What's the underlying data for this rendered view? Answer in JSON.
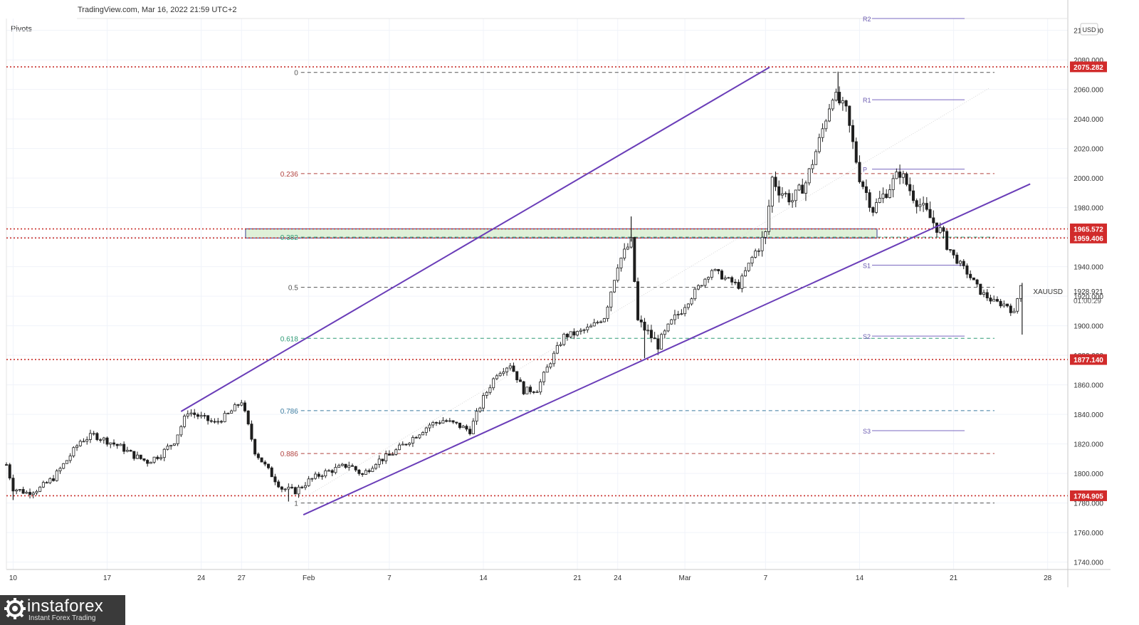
{
  "header": {
    "source": "TradingView.com, Mar 16, 2022 21:59 UTC+2",
    "indicator": "Pivots",
    "currency": "USD"
  },
  "brand": {
    "name": "instaforex",
    "tagline": "Instant Forex Trading"
  },
  "colors": {
    "background": "#ffffff",
    "grid": "#f0f3fa",
    "candle": "#1e1e1e",
    "channel": "#6a3db8",
    "level_red": "#c8302c",
    "fib_dashed": "#555555",
    "fib_red": "#b0413e",
    "fib_green": "#2e9a75",
    "fib_blue": "#3a7ba0",
    "zone_fill": "#dff0d8",
    "pivot_line": "#7a68c0"
  },
  "chart_data": {
    "type": "candlestick",
    "symbol": "XAUUSD",
    "last_price": "1928.921",
    "countdown": "01:00:29",
    "ylim": [
      1735,
      2108
    ],
    "y_ticks": [
      1740,
      1760,
      1780,
      1800,
      1820,
      1840,
      1860,
      1880,
      1900,
      1920,
      1940,
      1960,
      1980,
      2000,
      2020,
      2040,
      2060,
      2080,
      2100
    ],
    "y_tick_labels": [
      "1740.000",
      "1760.000",
      "1780.000",
      "1800.000",
      "1820.000",
      "1840.000",
      "1860.000",
      "1880.000",
      "1900.000",
      "1920.000",
      "1940.000",
      "1960.000",
      "1980.000",
      "2000.000",
      "2020.000",
      "2040.000",
      "2060.000",
      "2080.000",
      "2100.000"
    ],
    "x_ticks": [
      {
        "label": "10",
        "day": 0
      },
      {
        "label": "17",
        "day": 7
      },
      {
        "label": "24",
        "day": 14
      },
      {
        "label": "27",
        "day": 17
      },
      {
        "label": "Feb",
        "day": 22
      },
      {
        "label": "7",
        "day": 28
      },
      {
        "label": "14",
        "day": 35
      },
      {
        "label": "21",
        "day": 42
      },
      {
        "label": "24",
        "day": 45
      },
      {
        "label": "Mar",
        "day": 50
      },
      {
        "label": "7",
        "day": 56
      },
      {
        "label": "14",
        "day": 63
      },
      {
        "label": "21",
        "day": 70
      },
      {
        "label": "28",
        "day": 77
      }
    ],
    "x_range_days": [
      -0.5,
      78.5
    ],
    "price_path": [
      [
        -0.5,
        1806
      ],
      [
        0,
        1790
      ],
      [
        1,
        1787
      ],
      [
        2,
        1790
      ],
      [
        3,
        1797
      ],
      [
        4,
        1809
      ],
      [
        5,
        1822
      ],
      [
        6,
        1826
      ],
      [
        7,
        1822
      ],
      [
        8,
        1818
      ],
      [
        9,
        1812
      ],
      [
        10,
        1808
      ],
      [
        11,
        1813
      ],
      [
        12,
        1822
      ],
      [
        13,
        1842
      ],
      [
        14,
        1838
      ],
      [
        15,
        1834
      ],
      [
        16,
        1840
      ],
      [
        17,
        1849
      ],
      [
        18,
        1815
      ],
      [
        19,
        1802
      ],
      [
        20,
        1790
      ],
      [
        21,
        1788
      ],
      [
        22,
        1795
      ],
      [
        23,
        1800
      ],
      [
        24,
        1803
      ],
      [
        25,
        1806
      ],
      [
        26,
        1799
      ],
      [
        27,
        1808
      ],
      [
        28,
        1812
      ],
      [
        29,
        1819
      ],
      [
        30,
        1826
      ],
      [
        31,
        1833
      ],
      [
        32,
        1836
      ],
      [
        33,
        1833
      ],
      [
        34,
        1829
      ],
      [
        35,
        1851
      ],
      [
        36,
        1868
      ],
      [
        37,
        1874
      ],
      [
        38,
        1856
      ],
      [
        39,
        1857
      ],
      [
        40,
        1876
      ],
      [
        41,
        1893
      ],
      [
        42,
        1895
      ],
      [
        43,
        1899
      ],
      [
        44,
        1906
      ],
      [
        45,
        1942
      ],
      [
        46,
        1957
      ],
      [
        46.5,
        1903
      ],
      [
        47,
        1898
      ],
      [
        48,
        1887
      ],
      [
        49,
        1902
      ],
      [
        50,
        1914
      ],
      [
        51,
        1926
      ],
      [
        52,
        1938
      ],
      [
        53,
        1932
      ],
      [
        54,
        1927
      ],
      [
        55,
        1946
      ],
      [
        56,
        1962
      ],
      [
        56.5,
        2000
      ],
      [
        57,
        1992
      ],
      [
        58,
        1985
      ],
      [
        59,
        1997
      ],
      [
        60,
        2025
      ],
      [
        61,
        2057
      ],
      [
        62,
        2045
      ],
      [
        63,
        2001
      ],
      [
        64,
        1979
      ],
      [
        65,
        1991
      ],
      [
        66,
        2004
      ],
      [
        67,
        1988
      ],
      [
        68,
        1976
      ],
      [
        69,
        1964
      ],
      [
        70,
        1947
      ],
      [
        71,
        1936
      ],
      [
        72,
        1923
      ],
      [
        73,
        1916
      ],
      [
        74,
        1914
      ],
      [
        74.5,
        1908
      ],
      [
        75,
        1929
      ]
    ],
    "spikes": [
      {
        "day": 46,
        "high": 1974
      },
      {
        "day": 47,
        "low": 1878
      },
      {
        "day": 61.4,
        "high": 2072
      },
      {
        "day": 75.1,
        "low": 1894
      },
      {
        "day": 20.5,
        "low": 1781
      },
      {
        "day": 0,
        "low": 1782
      }
    ],
    "horizontal_levels": [
      {
        "value": 2075.282,
        "label": "2075.282"
      },
      {
        "value": 1965.572,
        "label": "1965.572"
      },
      {
        "value": 1959.406,
        "label": "1959.406"
      },
      {
        "value": 1877.14,
        "label": "1877.140"
      },
      {
        "value": 1784.905,
        "label": "1784.905"
      }
    ],
    "fibonacci": {
      "start_day": 21,
      "end_day": 76,
      "levels": [
        {
          "ratio": "0",
          "value": 2071.5,
          "color": "fib_dashed"
        },
        {
          "ratio": "0.236",
          "value": 2003.0,
          "color": "fib_red"
        },
        {
          "ratio": "0.382",
          "value": 1960.0,
          "color": "fib_green"
        },
        {
          "ratio": "0.5",
          "value": 1926.0,
          "color": "fib_dashed"
        },
        {
          "ratio": "0.618",
          "value": 1891.5,
          "color": "fib_green"
        },
        {
          "ratio": "0.786",
          "value": 1842.5,
          "color": "fib_blue"
        },
        {
          "ratio": "0.886",
          "value": 1813.5,
          "color": "fib_red"
        },
        {
          "ratio": "1",
          "value": 1780.0,
          "color": "fib_dashed"
        }
      ]
    },
    "zone": {
      "start_day": 17.3,
      "end_day": 64.3,
      "top": 1965.572,
      "bottom": 1959.406
    },
    "channel": {
      "upper": [
        [
          12.5,
          1842
        ],
        [
          56.3,
          2075
        ]
      ],
      "lower": [
        [
          21.6,
          1772
        ],
        [
          75.7,
          1996
        ]
      ]
    },
    "pivots": [
      {
        "label": "R2",
        "value": 2108,
        "start_day": 63.5,
        "end_day": 70.5
      },
      {
        "label": "R1",
        "value": 2053,
        "start_day": 63.5,
        "end_day": 70.5
      },
      {
        "label": "P",
        "value": 2006,
        "start_day": 63.5,
        "end_day": 70.5
      },
      {
        "label": "S1",
        "value": 1941,
        "start_day": 63.5,
        "end_day": 70.5
      },
      {
        "label": "S2",
        "value": 1893,
        "start_day": 63.5,
        "end_day": 70.5
      },
      {
        "label": "S3",
        "value": 1829,
        "start_day": 63.5,
        "end_day": 70.5
      }
    ]
  }
}
